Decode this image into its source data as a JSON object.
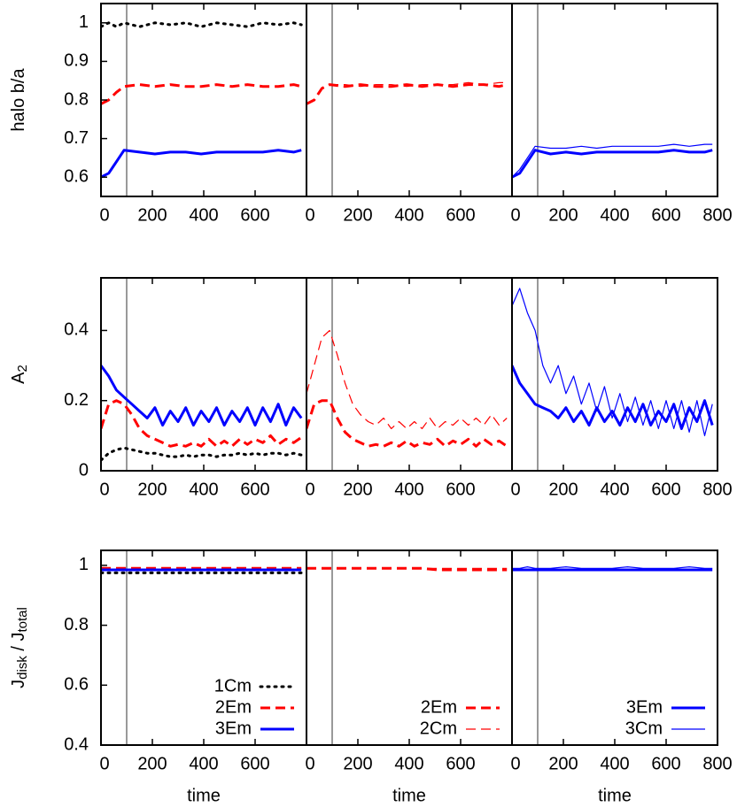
{
  "chart_data": [
    {
      "type": "line",
      "ylabel": [
        {
          "text": "halo b/a"
        }
      ],
      "xlim": [
        0,
        800
      ],
      "ylim": [
        0.55,
        1.05
      ],
      "xticks": [
        0,
        200,
        400,
        600
      ],
      "yticks": [
        0.6,
        0.7,
        0.8,
        0.9,
        1
      ],
      "vline": 100,
      "x": [
        0,
        30,
        60,
        90,
        150,
        210,
        270,
        330,
        390,
        450,
        510,
        570,
        630,
        690,
        750,
        780
      ],
      "series": [
        {
          "color": "#000000",
          "style": "dotted",
          "width": 3,
          "values": [
            0.99,
            1.0,
            0.99,
            1.0,
            0.99,
            1.0,
            0.995,
            1.0,
            0.99,
            1.0,
            0.995,
            0.99,
            1.0,
            0.995,
            1.0,
            0.995
          ]
        },
        {
          "color": "#ff0000",
          "style": "dashed",
          "width": 3,
          "values": [
            0.79,
            0.8,
            0.82,
            0.835,
            0.84,
            0.835,
            0.84,
            0.835,
            0.835,
            0.84,
            0.835,
            0.84,
            0.835,
            0.835,
            0.84,
            0.835
          ]
        },
        {
          "color": "#0000ff",
          "style": "solid",
          "width": 3,
          "values": [
            0.6,
            0.61,
            0.64,
            0.67,
            0.665,
            0.66,
            0.665,
            0.665,
            0.66,
            0.665,
            0.665,
            0.665,
            0.665,
            0.67,
            0.665,
            0.67
          ]
        }
      ]
    },
    {
      "type": "line",
      "xlim": [
        0,
        800
      ],
      "ylim": [
        0.55,
        1.05
      ],
      "xticks": [
        0,
        200,
        400,
        600
      ],
      "vline": 100,
      "x": [
        0,
        30,
        60,
        90,
        150,
        210,
        270,
        330,
        390,
        450,
        510,
        570,
        630,
        690,
        750,
        780
      ],
      "series": [
        {
          "color": "#ff0000",
          "style": "dashed",
          "width": 3,
          "values": [
            0.79,
            0.8,
            0.83,
            0.84,
            0.835,
            0.84,
            0.835,
            0.835,
            0.84,
            0.835,
            0.84,
            0.835,
            0.84,
            0.84,
            0.835,
            0.84
          ]
        },
        {
          "color": "#ff0000",
          "style": "dashed",
          "width": 1.2,
          "values": [
            0.79,
            0.8,
            0.83,
            0.84,
            0.84,
            0.835,
            0.84,
            0.84,
            0.835,
            0.84,
            0.84,
            0.84,
            0.845,
            0.84,
            0.845,
            0.845
          ]
        }
      ]
    },
    {
      "type": "line",
      "xlim": [
        0,
        800
      ],
      "ylim": [
        0.55,
        1.05
      ],
      "xticks": [
        0,
        200,
        400,
        600,
        800
      ],
      "vline": 100,
      "x": [
        0,
        30,
        60,
        90,
        150,
        210,
        270,
        330,
        390,
        450,
        510,
        570,
        630,
        690,
        750,
        780
      ],
      "series": [
        {
          "color": "#0000ff",
          "style": "solid",
          "width": 3,
          "values": [
            0.6,
            0.61,
            0.64,
            0.67,
            0.66,
            0.665,
            0.66,
            0.665,
            0.665,
            0.665,
            0.665,
            0.665,
            0.67,
            0.665,
            0.665,
            0.67
          ]
        },
        {
          "color": "#0000ff",
          "style": "solid",
          "width": 1.2,
          "values": [
            0.6,
            0.62,
            0.65,
            0.68,
            0.675,
            0.675,
            0.68,
            0.675,
            0.68,
            0.68,
            0.68,
            0.68,
            0.685,
            0.68,
            0.685,
            0.685
          ]
        }
      ]
    },
    {
      "type": "line",
      "ylabel": [
        {
          "text": "A"
        },
        {
          "text": "2",
          "sub": true
        }
      ],
      "xlim": [
        0,
        800
      ],
      "ylim": [
        0,
        0.55
      ],
      "xticks": [
        0,
        200,
        400,
        600
      ],
      "yticks": [
        0,
        0.2,
        0.4
      ],
      "vline": 100,
      "x": [
        0,
        30,
        60,
        90,
        120,
        150,
        180,
        210,
        240,
        270,
        300,
        330,
        360,
        390,
        420,
        450,
        480,
        510,
        540,
        570,
        600,
        630,
        660,
        690,
        720,
        750,
        780
      ],
      "series": [
        {
          "color": "#000000",
          "style": "dotted",
          "width": 3,
          "values": [
            0.03,
            0.05,
            0.06,
            0.065,
            0.06,
            0.055,
            0.05,
            0.05,
            0.045,
            0.04,
            0.04,
            0.045,
            0.04,
            0.045,
            0.045,
            0.04,
            0.045,
            0.045,
            0.05,
            0.045,
            0.05,
            0.045,
            0.05,
            0.05,
            0.045,
            0.05,
            0.045
          ]
        },
        {
          "color": "#ff0000",
          "style": "dashed",
          "width": 3,
          "values": [
            0.12,
            0.19,
            0.2,
            0.19,
            0.16,
            0.12,
            0.1,
            0.09,
            0.08,
            0.07,
            0.075,
            0.07,
            0.08,
            0.07,
            0.09,
            0.07,
            0.085,
            0.07,
            0.09,
            0.075,
            0.09,
            0.08,
            0.1,
            0.075,
            0.09,
            0.08,
            0.095
          ]
        },
        {
          "color": "#0000ff",
          "style": "solid",
          "width": 3,
          "values": [
            0.3,
            0.27,
            0.23,
            0.21,
            0.19,
            0.17,
            0.15,
            0.18,
            0.13,
            0.17,
            0.14,
            0.18,
            0.13,
            0.17,
            0.14,
            0.18,
            0.13,
            0.17,
            0.14,
            0.18,
            0.13,
            0.18,
            0.14,
            0.19,
            0.13,
            0.18,
            0.15
          ]
        }
      ]
    },
    {
      "type": "line",
      "xlim": [
        0,
        800
      ],
      "ylim": [
        0,
        0.55
      ],
      "xticks": [
        0,
        200,
        400,
        600
      ],
      "vline": 100,
      "x": [
        0,
        30,
        60,
        90,
        120,
        150,
        180,
        210,
        240,
        270,
        300,
        330,
        360,
        390,
        420,
        450,
        480,
        510,
        540,
        570,
        600,
        630,
        660,
        690,
        720,
        750,
        780
      ],
      "series": [
        {
          "color": "#ff0000",
          "style": "dashed",
          "width": 3,
          "values": [
            0.12,
            0.19,
            0.2,
            0.2,
            0.15,
            0.11,
            0.09,
            0.08,
            0.07,
            0.075,
            0.07,
            0.08,
            0.07,
            0.085,
            0.07,
            0.08,
            0.075,
            0.09,
            0.07,
            0.085,
            0.075,
            0.09,
            0.07,
            0.09,
            0.075,
            0.085,
            0.07
          ]
        },
        {
          "color": "#ff0000",
          "style": "dashed",
          "width": 1.2,
          "values": [
            0.22,
            0.3,
            0.38,
            0.4,
            0.33,
            0.25,
            0.19,
            0.16,
            0.14,
            0.13,
            0.15,
            0.12,
            0.14,
            0.12,
            0.14,
            0.12,
            0.15,
            0.12,
            0.14,
            0.13,
            0.15,
            0.13,
            0.15,
            0.13,
            0.16,
            0.13,
            0.15
          ]
        }
      ]
    },
    {
      "type": "line",
      "xlim": [
        0,
        800
      ],
      "ylim": [
        0,
        0.55
      ],
      "xticks": [
        0,
        200,
        400,
        600,
        800
      ],
      "vline": 100,
      "x": [
        0,
        30,
        60,
        90,
        120,
        150,
        180,
        210,
        240,
        270,
        300,
        330,
        360,
        390,
        420,
        450,
        480,
        510,
        540,
        570,
        600,
        630,
        660,
        690,
        720,
        750,
        780
      ],
      "series": [
        {
          "color": "#0000ff",
          "style": "solid",
          "width": 3,
          "values": [
            0.3,
            0.25,
            0.22,
            0.19,
            0.18,
            0.17,
            0.15,
            0.18,
            0.14,
            0.17,
            0.13,
            0.18,
            0.14,
            0.17,
            0.13,
            0.18,
            0.14,
            0.19,
            0.13,
            0.17,
            0.14,
            0.19,
            0.12,
            0.18,
            0.14,
            0.2,
            0.13
          ]
        },
        {
          "color": "#0000ff",
          "style": "solid",
          "width": 1.2,
          "values": [
            0.47,
            0.52,
            0.45,
            0.4,
            0.3,
            0.25,
            0.3,
            0.22,
            0.27,
            0.19,
            0.25,
            0.17,
            0.24,
            0.15,
            0.22,
            0.14,
            0.21,
            0.13,
            0.2,
            0.12,
            0.2,
            0.12,
            0.2,
            0.11,
            0.2,
            0.1,
            0.19
          ]
        }
      ]
    },
    {
      "type": "line",
      "ylabel": [
        {
          "text": "J"
        },
        {
          "text": "disk",
          "sub": true
        },
        {
          "text": " / J"
        },
        {
          "text": "total",
          "sub": true
        }
      ],
      "xlabel": "time",
      "xlim": [
        0,
        800
      ],
      "ylim": [
        0.4,
        1.05
      ],
      "xticks": [
        0,
        200,
        400,
        600
      ],
      "yticks": [
        0.4,
        0.6,
        0.8,
        1
      ],
      "vline": 100,
      "legend": "bottom-right",
      "x": [
        0,
        30,
        60,
        90,
        150,
        210,
        270,
        330,
        390,
        450,
        510,
        570,
        630,
        690,
        750,
        780
      ],
      "series": [
        {
          "name": "1Cm",
          "color": "#000000",
          "style": "dotted",
          "width": 3,
          "values": [
            0.975,
            0.975,
            0.975,
            0.975,
            0.975,
            0.975,
            0.975,
            0.975,
            0.975,
            0.975,
            0.975,
            0.975,
            0.975,
            0.975,
            0.975,
            0.975
          ]
        },
        {
          "name": "2Em",
          "color": "#ff0000",
          "style": "dashed",
          "width": 3,
          "values": [
            0.99,
            0.99,
            0.99,
            0.99,
            0.99,
            0.99,
            0.99,
            0.99,
            0.99,
            0.99,
            0.99,
            0.99,
            0.99,
            0.99,
            0.99,
            0.99
          ]
        },
        {
          "name": "3Em",
          "color": "#0000ff",
          "style": "solid",
          "width": 3,
          "values": [
            0.985,
            0.985,
            0.985,
            0.985,
            0.985,
            0.985,
            0.985,
            0.985,
            0.985,
            0.985,
            0.985,
            0.985,
            0.985,
            0.985,
            0.985,
            0.985
          ]
        }
      ]
    },
    {
      "type": "line",
      "xlabel": "time",
      "xlim": [
        0,
        800
      ],
      "ylim": [
        0.4,
        1.05
      ],
      "xticks": [
        0,
        200,
        400,
        600
      ],
      "vline": 100,
      "legend": "bottom-right",
      "x": [
        0,
        30,
        60,
        90,
        150,
        210,
        270,
        330,
        390,
        450,
        510,
        570,
        630,
        690,
        750,
        780
      ],
      "series": [
        {
          "name": "2Em",
          "color": "#ff0000",
          "style": "dashed",
          "width": 3,
          "values": [
            0.99,
            0.99,
            0.99,
            0.99,
            0.99,
            0.99,
            0.99,
            0.99,
            0.99,
            0.99,
            0.985,
            0.985,
            0.985,
            0.985,
            0.985,
            0.985
          ]
        },
        {
          "name": "2Cm",
          "color": "#ff0000",
          "style": "dashed",
          "width": 1.2,
          "values": [
            0.99,
            0.99,
            0.99,
            0.99,
            0.99,
            0.99,
            0.99,
            0.99,
            0.99,
            0.99,
            0.99,
            0.99,
            0.99,
            0.99,
            0.99,
            0.99
          ]
        }
      ]
    },
    {
      "type": "line",
      "xlabel": "time",
      "xlim": [
        0,
        800
      ],
      "ylim": [
        0.4,
        1.05
      ],
      "xticks": [
        0,
        200,
        400,
        600,
        800
      ],
      "vline": 100,
      "legend": "bottom-right",
      "x": [
        0,
        30,
        60,
        90,
        150,
        210,
        270,
        330,
        390,
        450,
        510,
        570,
        630,
        690,
        750,
        780
      ],
      "series": [
        {
          "name": "3Em",
          "color": "#0000ff",
          "style": "solid",
          "width": 3,
          "values": [
            0.985,
            0.985,
            0.985,
            0.985,
            0.985,
            0.985,
            0.985,
            0.985,
            0.985,
            0.985,
            0.985,
            0.985,
            0.985,
            0.985,
            0.985,
            0.985
          ]
        },
        {
          "name": "3Cm",
          "color": "#0000ff",
          "style": "solid",
          "width": 1.2,
          "values": [
            0.99,
            0.99,
            0.995,
            0.99,
            0.99,
            0.995,
            0.99,
            0.99,
            0.99,
            0.995,
            0.99,
            0.99,
            0.99,
            0.995,
            0.99,
            0.99
          ]
        }
      ]
    }
  ]
}
